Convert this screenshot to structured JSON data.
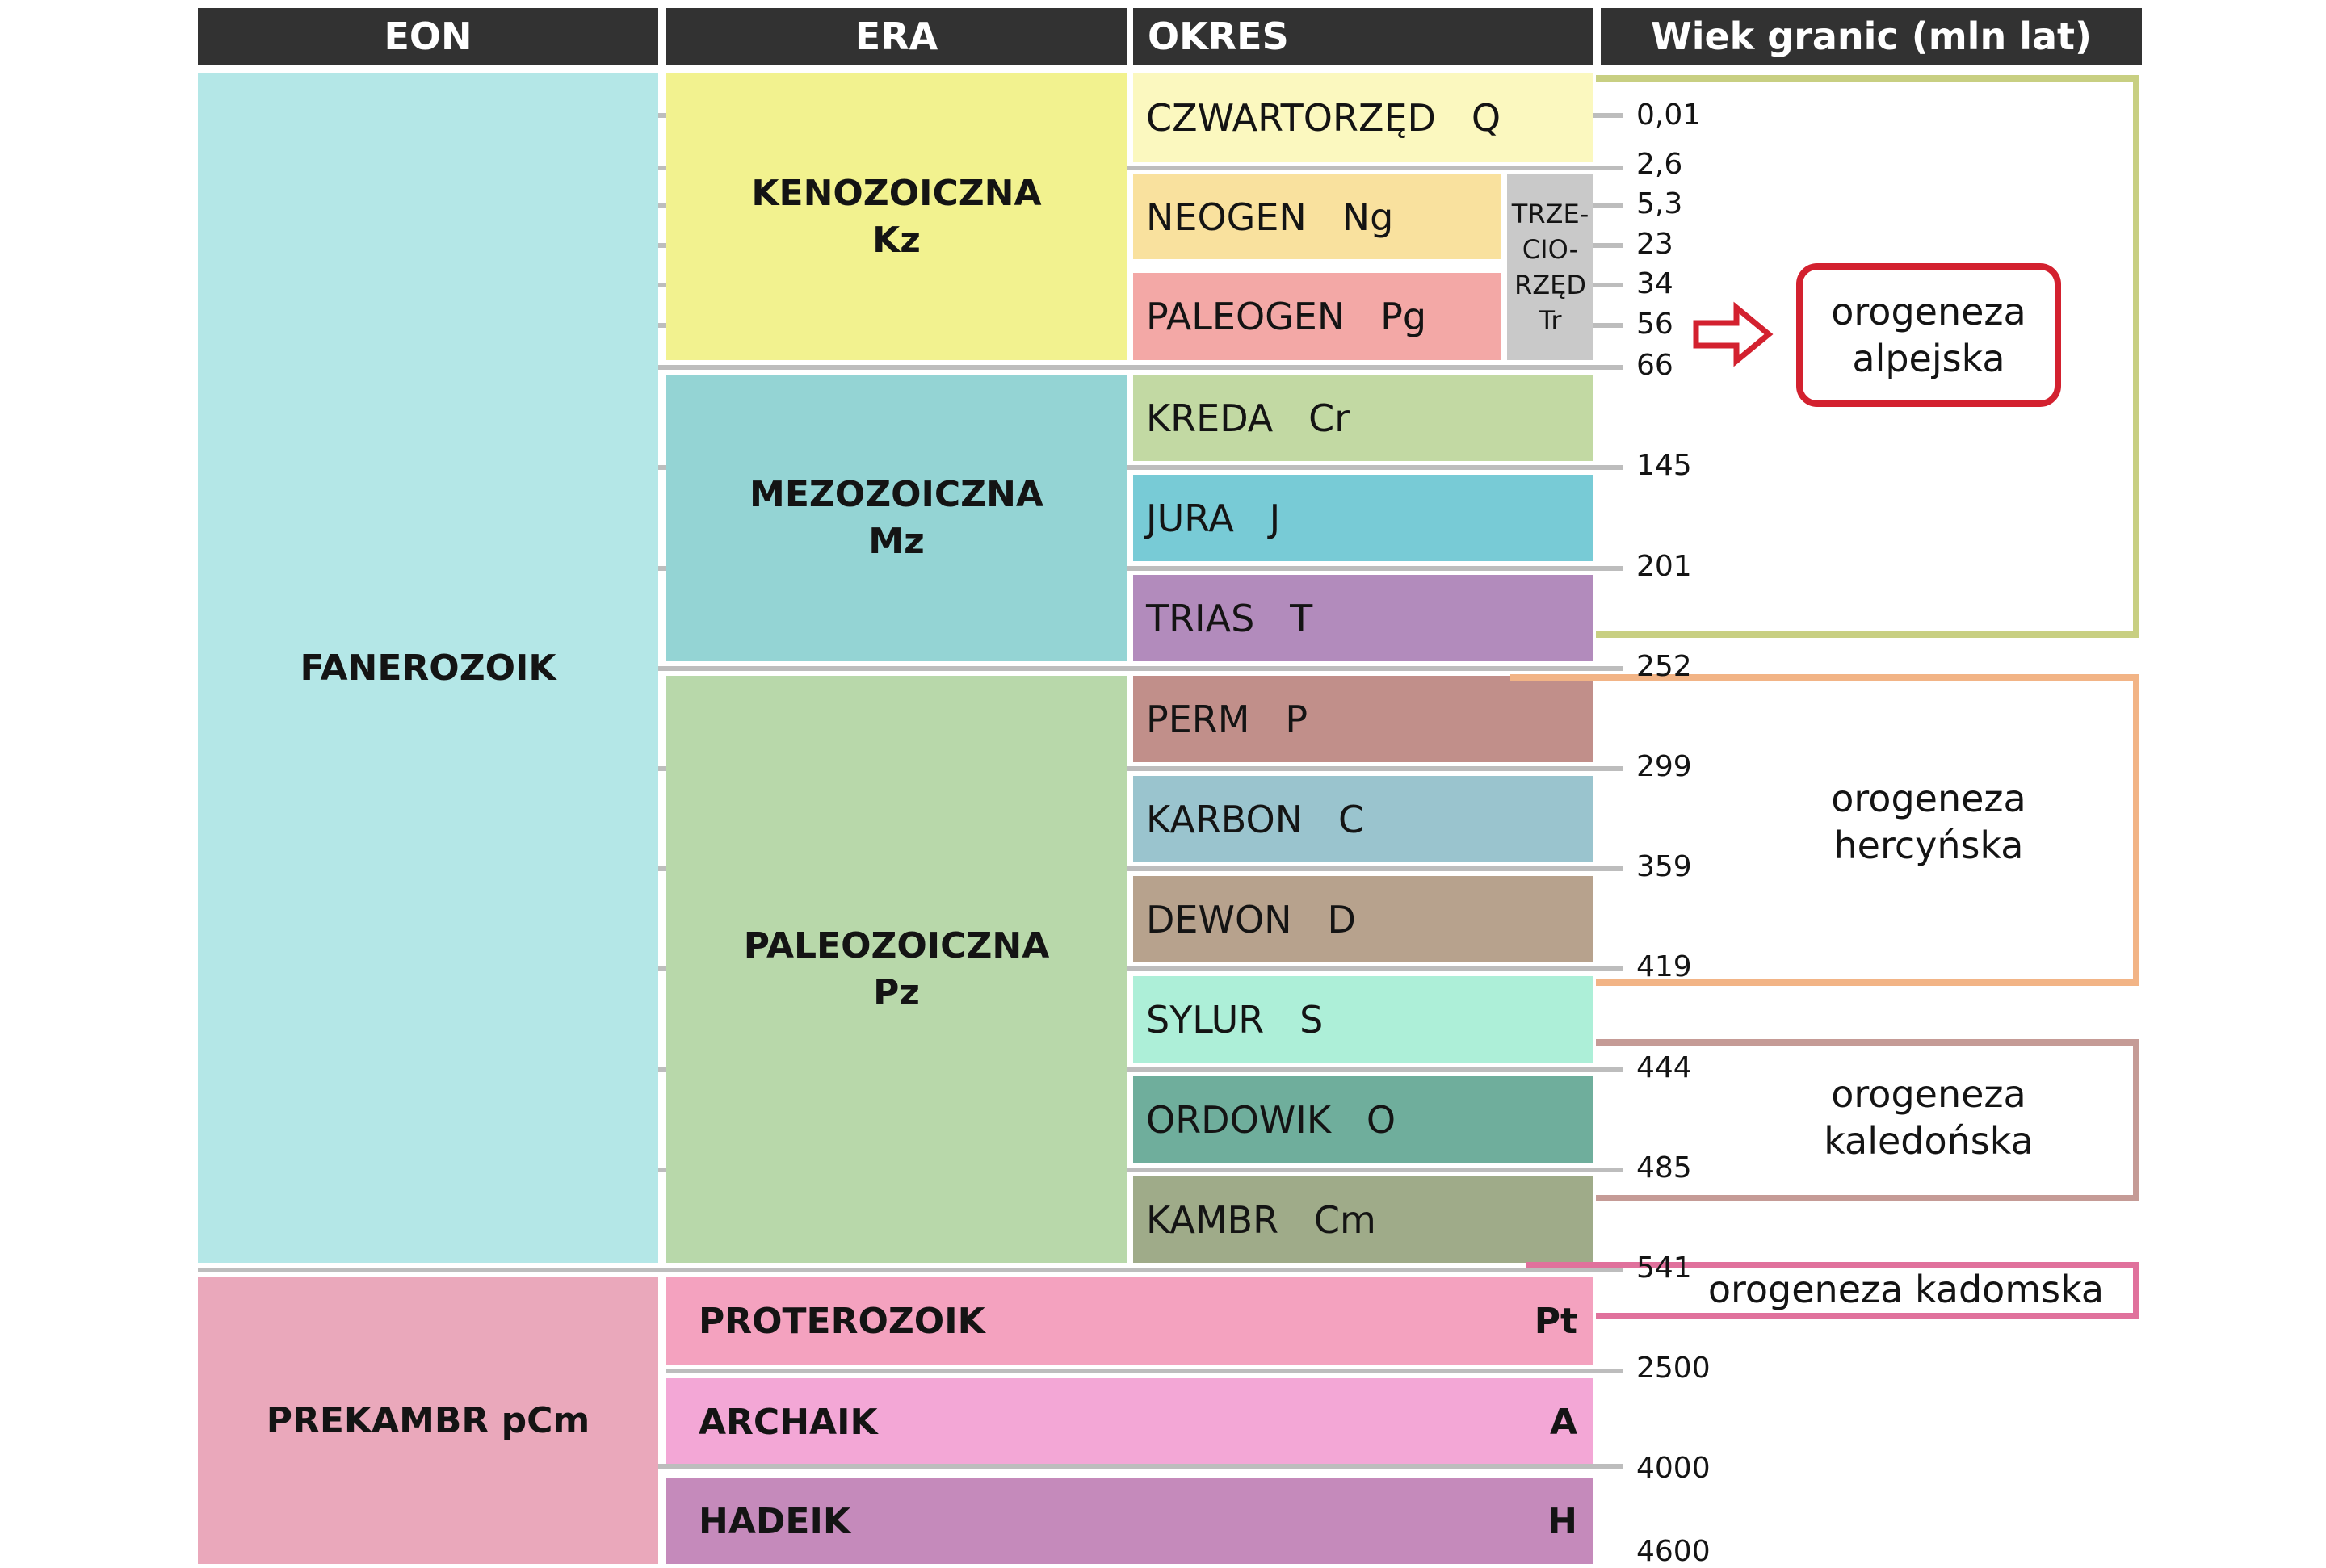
{
  "headers": {
    "eon": "EON",
    "era": "ERA",
    "okres": "OKRES",
    "wiek": "Wiek granic (mln lat)"
  },
  "eons": {
    "fanerozoik": "FANEROZOIK",
    "prekambr": "PREKAMBR pCm"
  },
  "eras": {
    "kenozoiczna": {
      "name": "KENOZOICZNA",
      "symbol": "Kz"
    },
    "mezozoiczna": {
      "name": "MEZOZOICZNA",
      "symbol": "Mz"
    },
    "paleozoiczna": {
      "name": "PALEOZOICZNA",
      "symbol": "Pz"
    }
  },
  "periods": [
    {
      "label": "CZWARTORZĘD   Q",
      "color": "#fbf8bf"
    },
    {
      "label": "NEOGEN   Ng",
      "color": "#f9e19e"
    },
    {
      "label": "PALEOGEN   Pg",
      "color": "#f3a8a6"
    },
    {
      "label": "KREDA   Cr",
      "color": "#c2d9a3"
    },
    {
      "label": "JURA   J",
      "color": "#78cbd6"
    },
    {
      "label": "TRIAS   T",
      "color": "#b28bbc"
    },
    {
      "label": "PERM   P",
      "color": "#c18f8a"
    },
    {
      "label": "KARBON   C",
      "color": "#9ac4ce"
    },
    {
      "label": "DEWON   D",
      "color": "#b7a28d"
    },
    {
      "label": "SYLUR   S",
      "color": "#adefd8"
    },
    {
      "label": "ORDOWIK   O",
      "color": "#6fae9c"
    },
    {
      "label": "KAMBR   Cm",
      "color": "#9fab89"
    }
  ],
  "trzeciorzed": {
    "lines": [
      "TRZE-",
      "CIO-",
      "RZĘD",
      "Tr"
    ]
  },
  "precambrian": [
    {
      "name": "PROTEROZOIK",
      "symbol": "Pt",
      "color": "#f4a2bf"
    },
    {
      "name": "ARCHAIK",
      "symbol": "A",
      "color": "#f3a7d6"
    },
    {
      "name": "HADEIK",
      "symbol": "H",
      "color": "#c58abb"
    }
  ],
  "ages": [
    "0,01",
    "2,6",
    "5,3",
    "23",
    "34",
    "56",
    "66",
    "145",
    "201",
    "252",
    "299",
    "359",
    "419",
    "444",
    "485",
    "541",
    "2500",
    "4000",
    "4600"
  ],
  "orogenies": {
    "alpejska": {
      "line1": "orogeneza",
      "line2": "alpejska",
      "color": "#c8cf82"
    },
    "hercynska": {
      "line1": "orogeneza",
      "line2": "hercyńska",
      "color": "#f2b486"
    },
    "kaledonska": {
      "line1": "orogeneza",
      "line2": "kaledońska",
      "color": "#c59b96"
    },
    "kadomska": {
      "label": "orogeneza kadomska",
      "color": "#e0719c"
    }
  },
  "colors": {
    "header": "#323232",
    "fanerozoik": "#b4e7e7",
    "prekambr": "#eaa8bb",
    "kenozoiczna": "#f2f28f",
    "mezozoiczna": "#94d4d4",
    "paleozoiczna": "#b8d8aa",
    "trzeciorzed": "#c9c9c9",
    "highlight": "#d3212f"
  }
}
